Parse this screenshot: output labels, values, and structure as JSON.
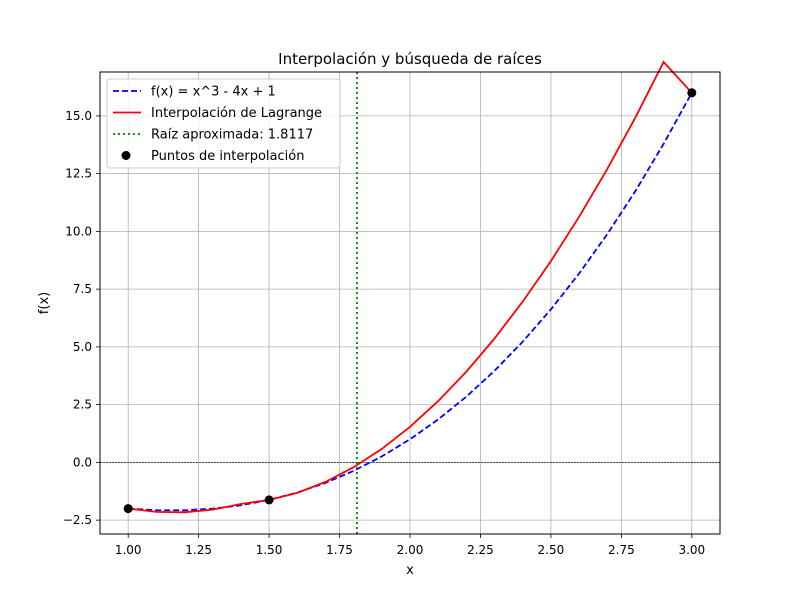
{
  "chart_data": {
    "type": "line",
    "title": "Interpolación y búsqueda de raíces",
    "xlabel": "x",
    "ylabel": "f(x)",
    "xlim": [
      0.9,
      3.1
    ],
    "ylim": [
      -3.1,
      16.9
    ],
    "xticks": [
      1.0,
      1.25,
      1.5,
      1.75,
      2.0,
      2.25,
      2.5,
      2.75,
      3.0
    ],
    "xtick_labels": [
      "1.00",
      "1.25",
      "1.50",
      "1.75",
      "2.00",
      "2.25",
      "2.50",
      "2.75",
      "3.00"
    ],
    "yticks": [
      -2.5,
      0.0,
      2.5,
      5.0,
      7.5,
      10.0,
      12.5,
      15.0
    ],
    "ytick_labels": [
      "−2.5",
      "0.0",
      "2.5",
      "5.0",
      "7.5",
      "10.0",
      "12.5",
      "15.0"
    ],
    "grid": true,
    "legend_position": "top-left",
    "hline_y": 0,
    "series": [
      {
        "name": "f(x) = x^3 - 4x + 1",
        "kind": "line",
        "style": "dashed",
        "color": "#0000ff",
        "x": [
          1.0,
          1.1,
          1.2,
          1.3,
          1.4,
          1.5,
          1.6,
          1.7,
          1.8,
          1.9,
          2.0,
          2.1,
          2.2,
          2.3,
          2.4,
          2.5,
          2.6,
          2.7,
          2.8,
          2.9,
          3.0
        ],
        "y": [
          -2.0,
          -2.069,
          -2.072,
          -2.003,
          -1.856,
          -1.625,
          -1.304,
          -0.887,
          -0.368,
          0.259,
          1.0,
          1.861,
          2.848,
          3.967,
          5.224,
          6.625,
          8.176,
          9.883,
          11.752,
          13.789,
          16.0
        ]
      },
      {
        "name": "Interpolación de Lagrange",
        "kind": "line",
        "style": "solid",
        "color": "#ff0000",
        "x": [
          1.0,
          1.1,
          1.2,
          1.3,
          1.4,
          1.5,
          1.6,
          1.7,
          1.8,
          1.9,
          2.0,
          2.1,
          2.2,
          2.3,
          2.4,
          2.5,
          2.6,
          2.7,
          2.8,
          2.9,
          3.0
        ],
        "y": [
          -2.0,
          -2.145,
          -2.16,
          -2.045,
          -1.8,
          -1.625,
          -1.32,
          -0.845,
          -0.21,
          0.585,
          1.54,
          2.655,
          3.93,
          5.365,
          6.96,
          8.715,
          10.63,
          12.705,
          14.94,
          17.335,
          16.0
        ]
      },
      {
        "name": "Raíz aproximada: 1.8117",
        "kind": "vline",
        "style": "dotted",
        "color": "#008000",
        "x": 1.8117
      },
      {
        "name": "Puntos de interpolación",
        "kind": "scatter",
        "color": "#000000",
        "x": [
          1.0,
          1.5,
          3.0
        ],
        "y": [
          -2.0,
          -1.625,
          16.0
        ]
      }
    ]
  }
}
